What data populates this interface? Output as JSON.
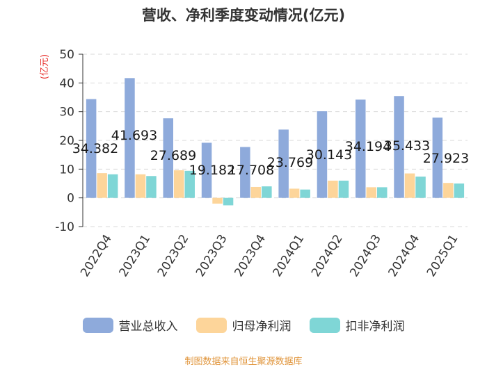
{
  "chart_data": {
    "type": "bar",
    "title": "营收、净利季度变动情况(亿元)",
    "ylabel": "(亿元)",
    "xlabel": "",
    "ylim": [
      -10,
      50
    ],
    "yticks": [
      -10,
      0,
      10,
      20,
      30,
      40,
      50
    ],
    "grid": true,
    "legend_position": "bottom",
    "categories": [
      "2022Q4",
      "2023Q1",
      "2023Q2",
      "2023Q3",
      "2023Q4",
      "2024Q1",
      "2024Q2",
      "2024Q3",
      "2024Q4",
      "2025Q1"
    ],
    "series": [
      {
        "name": "营业总收入",
        "color": "#8eaadb",
        "values": [
          34.382,
          41.693,
          27.689,
          19.182,
          17.708,
          23.769,
          30.143,
          34.194,
          35.433,
          27.923
        ]
      },
      {
        "name": "归母净利润",
        "color": "#fdd59a",
        "values": [
          8.6,
          8.2,
          9.6,
          -2.0,
          3.8,
          3.2,
          6.0,
          3.7,
          8.5,
          5.2
        ]
      },
      {
        "name": "扣非净利润",
        "color": "#7fd6d6",
        "values": [
          8.2,
          7.6,
          9.4,
          -2.6,
          4.0,
          2.9,
          6.0,
          3.7,
          7.4,
          5.0
        ]
      }
    ],
    "data_labels": [
      "34.382",
      "41.693",
      "27.689",
      "19.182",
      "17.708",
      "23.769",
      "30.143",
      "34.194",
      "35.433",
      "27.923"
    ]
  },
  "footer": "制图数据来自恒生聚源数据库"
}
